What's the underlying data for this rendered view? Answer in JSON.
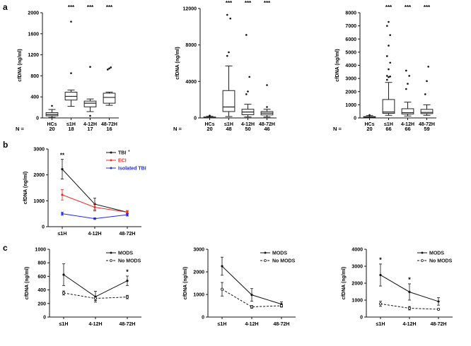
{
  "panel_labels": [
    "a",
    "b",
    "c"
  ],
  "colors": {
    "black": "#111111",
    "red": "#e8302a",
    "blue": "#1f2bd8",
    "box": "#222222"
  },
  "chart_data": [
    {
      "id": "a1",
      "type": "box",
      "ylabel": "cfDNA (ng/ml)",
      "yticks": [
        "0",
        "400",
        "800",
        "1200",
        "1600",
        "2000"
      ],
      "ylim": [
        0,
        2000
      ],
      "categories": [
        "HCs",
        "≤1H",
        "4-12H",
        "48-72H"
      ],
      "n_label": "N =",
      "n_values": [
        "20",
        "18",
        "17",
        "16"
      ],
      "significance": [
        "",
        "***",
        "***",
        "***"
      ],
      "boxes": [
        {
          "whisker_low": 10,
          "q1": 40,
          "median": 65,
          "q3": 100,
          "whisker_high": 160,
          "outliers": [
            230
          ]
        },
        {
          "whisker_low": 220,
          "q1": 340,
          "median": 410,
          "q3": 490,
          "whisker_high": 530,
          "outliers": [
            850,
            1830
          ]
        },
        {
          "whisker_low": 120,
          "q1": 210,
          "median": 280,
          "q3": 320,
          "whisker_high": 360,
          "outliers": [
            40,
            970
          ]
        },
        {
          "whisker_low": 240,
          "q1": 280,
          "median": 390,
          "q3": 470,
          "whisker_high": 490,
          "outliers": [
            920,
            940,
            960
          ]
        }
      ]
    },
    {
      "id": "a2",
      "type": "box",
      "ylabel": "cfDNA (ng/ml)",
      "yticks": [
        "0",
        "4000",
        "8000",
        "12000"
      ],
      "ylim": [
        0,
        12000
      ],
      "categories": [
        "HCs",
        "≤1H",
        "4-12H",
        "48-72H"
      ],
      "n_label": "N =",
      "n_values": [
        "20",
        "48",
        "50",
        "46"
      ],
      "significance": [
        "",
        "***",
        "***",
        "***"
      ],
      "boxes": [
        {
          "whisker_low": 0,
          "q1": 30,
          "median": 60,
          "q3": 100,
          "whisker_high": 180,
          "outliers": [
            220,
            260
          ]
        },
        {
          "whisker_low": 150,
          "q1": 700,
          "median": 1200,
          "q3": 3000,
          "whisker_high": 5700,
          "outliers": [
            6800,
            7200,
            10900,
            11300
          ]
        },
        {
          "whisker_low": 100,
          "q1": 350,
          "median": 650,
          "q3": 950,
          "whisker_high": 1500,
          "outliers": [
            2600,
            2900,
            4500,
            9100
          ]
        },
        {
          "whisker_low": 100,
          "q1": 330,
          "median": 520,
          "q3": 700,
          "whisker_high": 950,
          "outliers": [
            1200,
            3600
          ]
        }
      ]
    },
    {
      "id": "a3",
      "type": "box",
      "ylabel": "cfDNA (ng/ml)",
      "yticks": [
        "0",
        "1000",
        "2000",
        "3000",
        "4000",
        "5000",
        "6000",
        "7000",
        "8000"
      ],
      "ylim": [
        0,
        8000
      ],
      "categories": [
        "HCs",
        "≤1H",
        "4-12H",
        "48-72H"
      ],
      "n_label": "N =",
      "n_values": [
        "20",
        "66",
        "66",
        "59"
      ],
      "significance": [
        "",
        "***",
        "***",
        "***"
      ],
      "boxes": [
        {
          "whisker_low": 0,
          "q1": 30,
          "median": 60,
          "q3": 100,
          "whisker_high": 180,
          "outliers": [
            220
          ]
        },
        {
          "whisker_low": 200,
          "q1": 350,
          "median": 450,
          "q3": 1400,
          "whisker_high": 2700,
          "outliers": [
            2900,
            3100,
            3150,
            3200,
            3700,
            4200,
            4700,
            5500,
            6300,
            7000,
            7300
          ]
        },
        {
          "whisker_low": 150,
          "q1": 300,
          "median": 400,
          "q3": 700,
          "whisker_high": 1200,
          "outliers": [
            2200,
            2600,
            3200,
            3600
          ]
        },
        {
          "whisker_low": 200,
          "q1": 330,
          "median": 420,
          "q3": 650,
          "whisker_high": 1000,
          "outliers": [
            1800,
            2800,
            3900
          ]
        }
      ]
    },
    {
      "id": "b",
      "type": "line",
      "ylabel": "cfDNA (ng/ml)",
      "yticks": [
        "0",
        "1000",
        "2000",
        "3000"
      ],
      "ylim": [
        0,
        3000
      ],
      "categories": [
        "≤1H",
        "4-12H",
        "48-72H"
      ],
      "annotation": {
        "category_index": 0,
        "text": "**"
      },
      "legend_position": "top-right",
      "series": [
        {
          "name": "TBI",
          "superscript": "+",
          "color": "#111111",
          "dashed": false,
          "values": [
            2220,
            870,
            560
          ],
          "errors": [
            380,
            230,
            60
          ]
        },
        {
          "name": "ECI",
          "color": "#e8302a",
          "dashed": false,
          "values": [
            1230,
            750,
            560
          ],
          "errors": [
            200,
            150,
            60
          ]
        },
        {
          "name": "Isolated TBI",
          "color": "#1f2bd8",
          "dashed": false,
          "values": [
            500,
            310,
            460
          ],
          "errors": [
            60,
            30,
            50
          ]
        }
      ]
    },
    {
      "id": "c1",
      "type": "line",
      "ylabel": "cfDNA (ng/ml)",
      "yticks": [
        "0",
        "200",
        "400",
        "600",
        "800",
        "1000"
      ],
      "ylim": [
        0,
        1000
      ],
      "categories": [
        "≤1H",
        "4-12H",
        "48-72H"
      ],
      "significance": [
        "",
        "",
        "*"
      ],
      "legend_position": "top-right",
      "series": [
        {
          "name": "MODS",
          "color": "#111111",
          "dashed": false,
          "values": [
            625,
            300,
            535
          ],
          "errors": [
            160,
            80,
            70
          ]
        },
        {
          "name": "No MODS",
          "color": "#111111",
          "dashed": true,
          "values": [
            355,
            275,
            295
          ],
          "errors": [
            30,
            30,
            25
          ]
        }
      ]
    },
    {
      "id": "c2",
      "type": "line",
      "ylabel": "cfDNA (ng/ml)",
      "yticks": [
        "0",
        "1000",
        "2000",
        "3000"
      ],
      "ylim": [
        0,
        3000
      ],
      "categories": [
        "≤1H",
        "4-12H",
        "48-72H"
      ],
      "significance": [
        "",
        "",
        ""
      ],
      "legend_position": "top-right",
      "series": [
        {
          "name": "MODS",
          "color": "#111111",
          "dashed": false,
          "values": [
            2250,
            980,
            570
          ],
          "errors": [
            400,
            280,
            100
          ]
        },
        {
          "name": "No MODS",
          "color": "#111111",
          "dashed": true,
          "values": [
            1230,
            450,
            500
          ],
          "errors": [
            300,
            60,
            60
          ]
        }
      ]
    },
    {
      "id": "c3",
      "type": "line",
      "ylabel": "cfDNA (ng/ml)",
      "yticks": [
        "0",
        "1000",
        "2000",
        "3000",
        "4000"
      ],
      "ylim": [
        0,
        4000
      ],
      "categories": [
        "≤1H",
        "4-12H",
        "48-72H"
      ],
      "significance": [
        "*",
        "*",
        ""
      ],
      "legend_position": "top-right",
      "series": [
        {
          "name": "MODS",
          "color": "#111111",
          "dashed": false,
          "values": [
            2480,
            1480,
            920
          ],
          "errors": [
            650,
            480,
            220
          ]
        },
        {
          "name": "No MODS",
          "color": "#111111",
          "dashed": true,
          "values": [
            780,
            520,
            460
          ],
          "errors": [
            150,
            100,
            40
          ]
        }
      ]
    }
  ]
}
